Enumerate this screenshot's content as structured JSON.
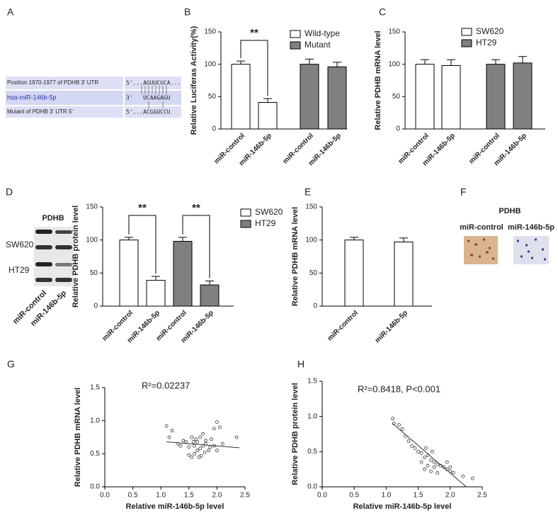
{
  "panel_labels": [
    "A",
    "B",
    "C",
    "D",
    "E",
    "F",
    "G",
    "H"
  ],
  "alignment": {
    "rows": [
      [
        "Position 1970-1977 of PDHB 3' UTR",
        "5'...AGUUCUCA..."
      ],
      [
        "hsa-miR-146b-5p",
        "3'   UCAAGAGU"
      ],
      [
        "Mutant of PDHB 3' UTR 5'",
        "5'...ACGGUCCU"
      ]
    ]
  },
  "blot": {
    "title": "PDHB",
    "rows": [
      "SW620",
      "HT29"
    ],
    "columns": [
      "miR-control",
      "miR-146b-5p"
    ]
  },
  "ihc": {
    "title": "PDHB",
    "columns": [
      "miR-control",
      "miR-146b-5p"
    ]
  },
  "chart_data": [
    {
      "type": "bar",
      "y_label": "Relative Luciferas Activity(%)",
      "categories": [
        "miR-control",
        "miR-146b-5p",
        "miR-control",
        "miR-146b-5p"
      ],
      "series": [
        {
          "name": "Wild-type",
          "color": "#ffffff",
          "values": [
            100,
            41,
            null,
            null
          ],
          "errors": [
            5,
            6,
            null,
            null
          ]
        },
        {
          "name": "Mutant",
          "color": "#808080",
          "values": [
            null,
            null,
            100,
            96
          ],
          "errors": [
            null,
            null,
            8,
            7
          ]
        }
      ],
      "ylim": [
        0,
        150
      ],
      "yticks": [
        0,
        50,
        100,
        150
      ],
      "annotations": [
        "**"
      ]
    },
    {
      "type": "bar",
      "y_label": "Relative PDHB mRNA level",
      "categories": [
        "miR-control",
        "miR-146b-5p",
        "miR-control",
        "miR-146b-5p"
      ],
      "series": [
        {
          "name": "SW620",
          "color": "#ffffff",
          "values": [
            100,
            98,
            null,
            null
          ],
          "errors": [
            7,
            9,
            null,
            null
          ]
        },
        {
          "name": "HT29",
          "color": "#808080",
          "values": [
            null,
            null,
            100,
            102
          ],
          "errors": [
            null,
            null,
            7,
            10
          ]
        }
      ],
      "ylim": [
        0,
        150
      ],
      "yticks": [
        0,
        50,
        100,
        150
      ]
    },
    {
      "type": "bar",
      "y_label": "Relative PDHB protein level",
      "categories": [
        "miR-control",
        "miR-146b-5p",
        "miR-control",
        "miR-146b-5p"
      ],
      "series": [
        {
          "name": "SW620",
          "color": "#ffffff",
          "values": [
            100,
            39,
            null,
            null
          ],
          "errors": [
            4,
            6,
            null,
            null
          ]
        },
        {
          "name": "HT29",
          "color": "#808080",
          "values": [
            null,
            null,
            98,
            32
          ],
          "errors": [
            null,
            null,
            6,
            6
          ]
        }
      ],
      "ylim": [
        0,
        150
      ],
      "yticks": [
        0,
        50,
        100,
        150
      ],
      "annotations": [
        "**",
        "**"
      ]
    },
    {
      "type": "bar",
      "y_label": "Relative PDHB mRNA level",
      "categories": [
        "miR-control",
        "miR-146b-5p"
      ],
      "series": [
        {
          "color": "#ffffff",
          "values": [
            100,
            97
          ],
          "errors": [
            4,
            6
          ]
        }
      ],
      "ylim": [
        0,
        150
      ],
      "yticks": [
        0,
        50,
        100,
        150
      ]
    },
    {
      "type": "scatter",
      "x_label": "Relative miR-146b-5p level",
      "y_label": "Relative PDHB mRNA level",
      "annotations": [
        "R²=0.02237"
      ],
      "x": [
        1.1,
        1.15,
        1.2,
        1.3,
        1.35,
        1.4,
        1.45,
        1.5,
        1.5,
        1.55,
        1.55,
        1.6,
        1.6,
        1.62,
        1.65,
        1.65,
        1.7,
        1.7,
        1.72,
        1.75,
        1.75,
        1.78,
        1.8,
        1.8,
        1.85,
        1.88,
        1.9,
        1.95,
        1.95,
        2.0,
        2.0,
        2.05,
        2.1,
        2.35,
        1.68,
        1.58
      ],
      "y": [
        0.92,
        0.75,
        0.85,
        0.65,
        0.62,
        0.7,
        0.68,
        0.6,
        0.48,
        0.75,
        0.45,
        0.62,
        0.5,
        0.72,
        0.55,
        0.68,
        0.58,
        0.75,
        0.47,
        0.62,
        0.8,
        0.52,
        0.65,
        0.7,
        0.55,
        0.6,
        0.72,
        0.88,
        0.62,
        0.98,
        0.55,
        0.9,
        0.65,
        0.75,
        0.45,
        0.68
      ],
      "trendline": {
        "x": [
          1.1,
          2.4
        ],
        "y": [
          0.68,
          0.59
        ]
      },
      "xlim": [
        0,
        2.5
      ],
      "ylim": [
        0,
        1.5
      ],
      "xticks": [
        {
          "value": 0,
          "label": "0.0"
        },
        0.5,
        {
          "value": 1,
          "label": "1.0"
        },
        1.5,
        {
          "value": 2,
          "label": "2.0"
        },
        2.5
      ],
      "yticks": [
        {
          "value": 0,
          "label": "0.0"
        },
        0.5,
        {
          "value": 1,
          "label": "1.0"
        },
        1.5
      ]
    },
    {
      "type": "scatter",
      "x_label": "Relative miR-146b-5p level",
      "y_label": "Relative PDHB protein level",
      "annotations": [
        "R²=0.8418, P<0.001"
      ],
      "x": [
        1.1,
        1.12,
        1.2,
        1.25,
        1.3,
        1.35,
        1.4,
        1.45,
        1.5,
        1.55,
        1.55,
        1.6,
        1.6,
        1.62,
        1.65,
        1.65,
        1.7,
        1.7,
        1.72,
        1.75,
        1.75,
        1.8,
        1.8,
        1.85,
        1.9,
        1.95,
        1.95,
        2.0,
        2.0,
        2.05,
        2.2,
        2.35
      ],
      "y": [
        0.97,
        0.9,
        0.88,
        0.82,
        0.72,
        0.65,
        0.58,
        0.55,
        0.5,
        0.48,
        0.35,
        0.42,
        0.25,
        0.55,
        0.3,
        0.45,
        0.38,
        0.22,
        0.5,
        0.35,
        0.28,
        0.32,
        0.2,
        0.3,
        0.28,
        0.25,
        0.35,
        0.22,
        0.28,
        0.2,
        0.15,
        0.12
      ],
      "trendline": {
        "x": [
          1.1,
          2.25
        ],
        "y": [
          0.9,
          0
        ]
      },
      "xlim": [
        0,
        2.5
      ],
      "ylim": [
        0,
        1.5
      ],
      "xticks": [
        {
          "value": 0,
          "label": "0.0"
        },
        0.5,
        {
          "value": 1,
          "label": "1.0"
        },
        1.5,
        {
          "value": 2,
          "label": "2.0"
        },
        2.5
      ],
      "yticks": [
        {
          "value": 0,
          "label": "0.0"
        },
        0.5,
        {
          "value": 1,
          "label": "1.0"
        },
        1.5
      ]
    }
  ]
}
